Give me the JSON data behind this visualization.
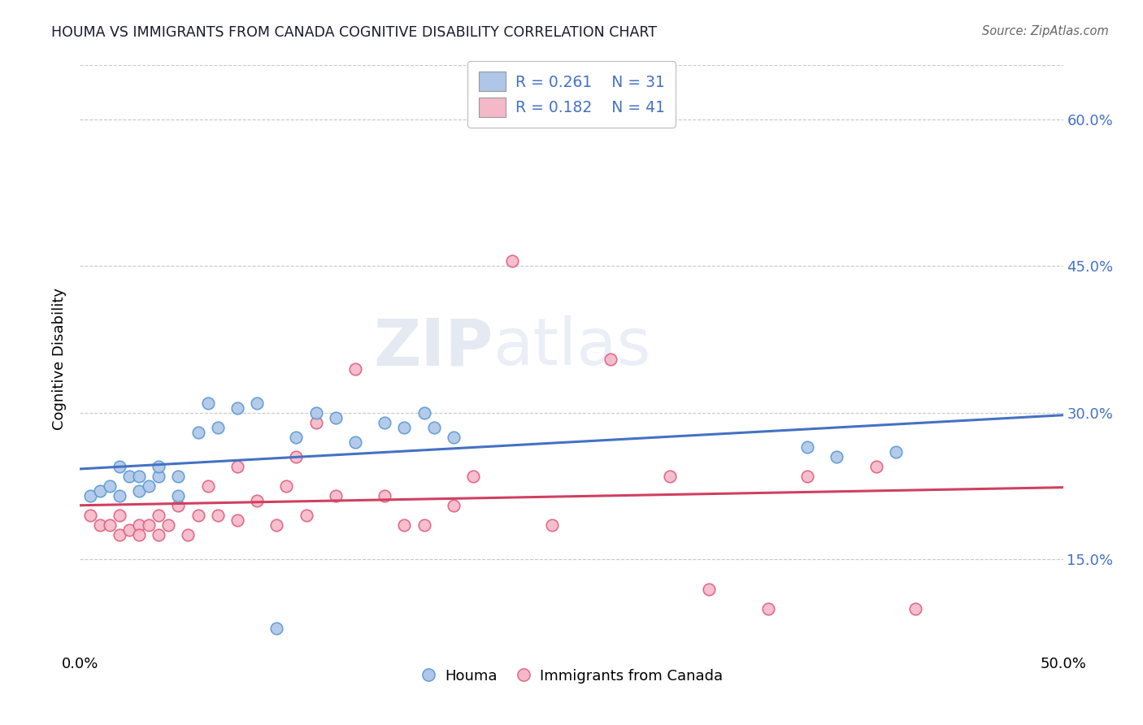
{
  "title": "HOUMA VS IMMIGRANTS FROM CANADA COGNITIVE DISABILITY CORRELATION CHART",
  "source": "Source: ZipAtlas.com",
  "ylabel": "Cognitive Disability",
  "xlim": [
    0.0,
    0.5
  ],
  "ylim": [
    0.055,
    0.655
  ],
  "yticks": [
    0.15,
    0.3,
    0.45,
    0.6
  ],
  "ytick_labels": [
    "15.0%",
    "30.0%",
    "45.0%",
    "60.0%"
  ],
  "houma_color": "#aec6e8",
  "houma_edge_color": "#5b9bd5",
  "canada_color": "#f4b8c8",
  "canada_edge_color": "#e06080",
  "houma_line_color": "#4472c4",
  "canada_line_color": "#d04060",
  "legend_R_color": "#4472c4",
  "background_color": "#ffffff",
  "grid_color": "#c8c8c8",
  "houma_R": 0.261,
  "houma_N": 31,
  "canada_R": 0.182,
  "canada_N": 41,
  "watermark_zip": "ZIP",
  "watermark_atlas": "atlas",
  "houma_x": [
    0.005,
    0.01,
    0.015,
    0.02,
    0.02,
    0.025,
    0.03,
    0.03,
    0.035,
    0.04,
    0.04,
    0.05,
    0.05,
    0.06,
    0.065,
    0.07,
    0.08,
    0.09,
    0.1,
    0.11,
    0.12,
    0.13,
    0.14,
    0.155,
    0.165,
    0.175,
    0.18,
    0.19,
    0.37,
    0.385,
    0.415
  ],
  "houma_y": [
    0.215,
    0.22,
    0.225,
    0.215,
    0.245,
    0.235,
    0.22,
    0.235,
    0.225,
    0.235,
    0.245,
    0.215,
    0.235,
    0.28,
    0.31,
    0.285,
    0.305,
    0.31,
    0.08,
    0.275,
    0.3,
    0.295,
    0.27,
    0.29,
    0.285,
    0.3,
    0.285,
    0.275,
    0.265,
    0.255,
    0.26
  ],
  "canada_x": [
    0.005,
    0.01,
    0.015,
    0.02,
    0.02,
    0.025,
    0.03,
    0.03,
    0.035,
    0.04,
    0.04,
    0.045,
    0.05,
    0.055,
    0.06,
    0.065,
    0.07,
    0.08,
    0.08,
    0.09,
    0.1,
    0.105,
    0.11,
    0.115,
    0.12,
    0.13,
    0.14,
    0.155,
    0.165,
    0.175,
    0.19,
    0.2,
    0.22,
    0.24,
    0.27,
    0.3,
    0.32,
    0.35,
    0.37,
    0.405,
    0.425
  ],
  "canada_y": [
    0.195,
    0.185,
    0.185,
    0.175,
    0.195,
    0.18,
    0.185,
    0.175,
    0.185,
    0.195,
    0.175,
    0.185,
    0.205,
    0.175,
    0.195,
    0.225,
    0.195,
    0.19,
    0.245,
    0.21,
    0.185,
    0.225,
    0.255,
    0.195,
    0.29,
    0.215,
    0.345,
    0.215,
    0.185,
    0.185,
    0.205,
    0.235,
    0.455,
    0.185,
    0.355,
    0.235,
    0.12,
    0.1,
    0.235,
    0.245,
    0.1
  ]
}
